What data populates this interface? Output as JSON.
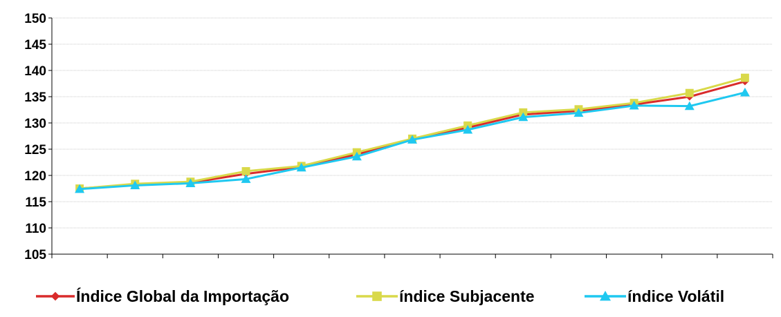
{
  "chart_data": {
    "type": "line",
    "title": "",
    "xlabel": "",
    "ylabel": "",
    "ylim": [
      105,
      150
    ],
    "yticks": [
      105,
      110,
      115,
      120,
      125,
      130,
      135,
      140,
      145,
      150
    ],
    "x_count": 13,
    "grid": "horizontal",
    "legend_position": "bottom",
    "series": [
      {
        "name": "Índice Global da Importação",
        "color": "#d92b2b",
        "marker": "diamond",
        "values": [
          117.5,
          118.3,
          118.6,
          120.3,
          121.6,
          124.0,
          126.9,
          129.1,
          131.6,
          132.3,
          133.5,
          135.0,
          137.9
        ]
      },
      {
        "name": "índice Subjacente",
        "color": "#d9d94a",
        "marker": "square",
        "values": [
          117.5,
          118.4,
          118.8,
          120.8,
          121.8,
          124.4,
          127.0,
          129.5,
          132.0,
          132.6,
          133.8,
          135.7,
          138.6
        ]
      },
      {
        "name": "índice Volátil",
        "color": "#1fc8f0",
        "marker": "triangle",
        "values": [
          117.4,
          118.1,
          118.5,
          119.3,
          121.5,
          123.6,
          126.8,
          128.7,
          131.1,
          131.9,
          133.3,
          133.2,
          135.8
        ]
      }
    ]
  }
}
